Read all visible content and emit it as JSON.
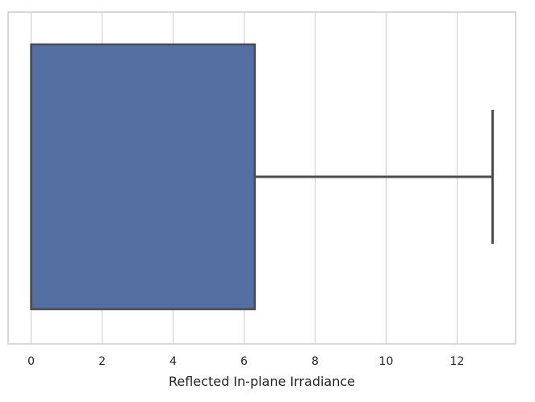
{
  "chart_data": {
    "type": "box",
    "orientation": "horizontal",
    "xlabel": "Reflected In-plane Irradiance",
    "ylabel": "",
    "xlim": [
      -0.65,
      13.65
    ],
    "xticks": [
      0,
      2,
      4,
      6,
      8,
      10,
      12
    ],
    "grid": "x-only",
    "box": {
      "min": 0,
      "q1": 0,
      "median": 0,
      "q3": 6.3,
      "max": 13.0
    },
    "colors": {
      "box_fill": "#5470a3",
      "box_edge": "#4d4d4d",
      "grid": "#cccccc",
      "frame": "#cccccc"
    }
  }
}
